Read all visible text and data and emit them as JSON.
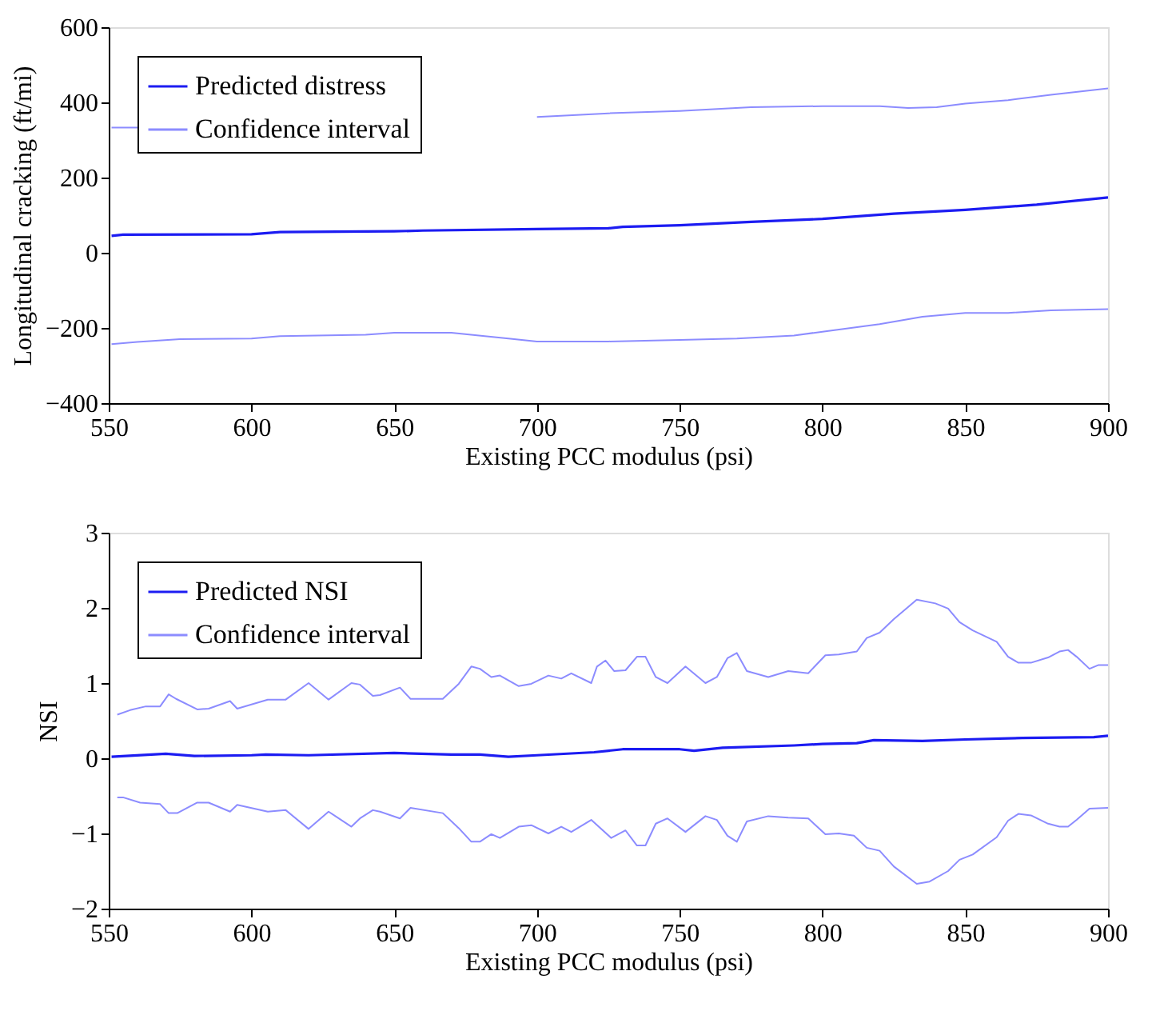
{
  "chart_data": [
    {
      "type": "line",
      "xlabel": "Existing PCC modulus (psi)",
      "ylabel": "Longitudinal cracking (ft/mi)",
      "xlim": [
        550,
        900
      ],
      "ylim": [
        -400,
        600
      ],
      "xticks": [
        550,
        600,
        650,
        700,
        750,
        800,
        850,
        900
      ],
      "yticks": [
        -400,
        -200,
        0,
        200,
        400,
        600
      ],
      "grid": false,
      "legend": "top left",
      "series": [
        {
          "name": "Predicted distress",
          "color": "#1c1cf2",
          "x": [
            551,
            555,
            600,
            610,
            650,
            660,
            700,
            725,
            730,
            750,
            775,
            800,
            825,
            850,
            875,
            900
          ],
          "values": [
            45,
            48,
            49,
            55,
            57,
            59,
            63,
            65,
            69,
            73,
            82,
            90,
            104,
            114,
            128,
            147
          ]
        },
        {
          "name": "Confidence interval",
          "color": "#8c8cff",
          "x": [
            551,
            572,
            636,
            700,
            725,
            750,
            775,
            800,
            820,
            830,
            840,
            850,
            865,
            880,
            900
          ],
          "values": [
            333,
            333,
            null,
            361,
            371,
            377,
            387,
            390,
            390,
            385,
            387,
            397,
            406,
            420,
            437
          ]
        },
        {
          "color": "#8c8cff",
          "x": [
            551,
            560,
            575,
            600,
            610,
            640,
            650,
            670,
            690,
            700,
            725,
            750,
            770,
            790,
            800,
            820,
            835,
            850,
            865,
            880,
            900
          ],
          "values": [
            -243,
            -237,
            -230,
            -228,
            -222,
            -218,
            -213,
            -213,
            -228,
            -236,
            -236,
            -232,
            -228,
            -220,
            -210,
            -190,
            -170,
            -160,
            -160,
            -153,
            -150
          ]
        }
      ]
    },
    {
      "type": "line",
      "xlabel": "Existing PCC modulus (psi)",
      "ylabel": "NSI",
      "xlim": [
        550,
        900
      ],
      "ylim": [
        -2,
        3
      ],
      "xticks": [
        550,
        600,
        650,
        700,
        750,
        800,
        850,
        900
      ],
      "yticks": [
        -2,
        -1,
        0,
        1,
        2,
        3
      ],
      "grid": false,
      "legend": "top left",
      "series": [
        {
          "name": "Predicted NSI",
          "color": "#1c1cf2",
          "x": [
            551,
            570,
            580,
            600,
            605,
            620,
            650,
            670,
            680,
            690,
            700,
            720,
            730,
            750,
            755,
            765,
            790,
            800,
            812,
            818,
            835,
            850,
            870,
            895,
            900
          ],
          "values": [
            0.02,
            0.06,
            0.03,
            0.04,
            0.05,
            0.04,
            0.07,
            0.05,
            0.05,
            0.02,
            0.04,
            0.08,
            0.12,
            0.12,
            0.1,
            0.14,
            0.17,
            0.19,
            0.2,
            0.24,
            0.23,
            0.25,
            0.27,
            0.28,
            0.3
          ]
        },
        {
          "name": "Confidence interval",
          "color": "#8c8cff",
          "x": [
            553,
            557.5,
            563,
            568,
            571,
            573.6,
            581,
            585,
            592.5,
            595,
            605.7,
            612,
            620,
            627,
            635,
            638,
            642.5,
            645,
            652,
            655.7,
            667,
            672.6,
            677,
            680,
            684,
            687,
            693.6,
            698,
            704,
            708.5,
            712,
            719,
            721,
            724,
            727,
            731,
            735,
            738,
            741.6,
            745.7,
            752,
            759,
            763,
            766.7,
            770,
            773.5,
            781,
            788,
            795,
            801,
            805.7,
            812,
            815.5,
            820,
            825,
            833,
            839.5,
            844,
            848,
            852.6,
            861,
            865,
            868.6,
            873,
            879,
            883,
            886,
            889,
            893.5,
            896.7,
            900
          ],
          "values": [
            0.58,
            0.64,
            0.69,
            0.69,
            0.85,
            0.79,
            0.65,
            0.66,
            0.76,
            0.66,
            0.78,
            0.78,
            1.0,
            0.78,
            1.0,
            0.98,
            0.83,
            0.84,
            0.94,
            0.79,
            0.79,
            0.99,
            1.22,
            1.19,
            1.08,
            1.1,
            0.96,
            0.99,
            1.1,
            1.06,
            1.13,
            1.0,
            1.22,
            1.3,
            1.16,
            1.17,
            1.35,
            1.35,
            1.08,
            1.0,
            1.22,
            1.0,
            1.08,
            1.33,
            1.4,
            1.16,
            1.08,
            1.16,
            1.13,
            1.37,
            1.38,
            1.42,
            1.6,
            1.67,
            1.85,
            2.11,
            2.06,
            1.99,
            1.81,
            1.7,
            1.55,
            1.35,
            1.27,
            1.27,
            1.34,
            1.42,
            1.44,
            1.35,
            1.19,
            1.24,
            1.24
          ]
        },
        {
          "color": "#8c8cff",
          "x": [
            553,
            555,
            561,
            568,
            571,
            574,
            581,
            585,
            592.5,
            595,
            605.7,
            612,
            620,
            627,
            635,
            638,
            642.5,
            645,
            652,
            655.7,
            667,
            672.6,
            677,
            680,
            684,
            687,
            693.6,
            698,
            704,
            708.5,
            712,
            719,
            726,
            731,
            735,
            738,
            741.6,
            745.7,
            752,
            759,
            763,
            766.7,
            770,
            773.5,
            781,
            788,
            795,
            801,
            805.7,
            811,
            815.5,
            820,
            825,
            833,
            837.5,
            844,
            848,
            852.6,
            861,
            865,
            868.6,
            873,
            879,
            883,
            886,
            889,
            893.5,
            900
          ],
          "values": [
            -0.52,
            -0.52,
            -0.59,
            -0.61,
            -0.73,
            -0.73,
            -0.59,
            -0.59,
            -0.71,
            -0.62,
            -0.71,
            -0.69,
            -0.94,
            -0.71,
            -0.91,
            -0.8,
            -0.69,
            -0.71,
            -0.8,
            -0.66,
            -0.73,
            -0.93,
            -1.11,
            -1.11,
            -1.01,
            -1.06,
            -0.91,
            -0.89,
            -1.0,
            -0.91,
            -0.98,
            -0.82,
            -1.06,
            -0.96,
            -1.16,
            -1.16,
            -0.87,
            -0.8,
            -0.98,
            -0.77,
            -0.82,
            -1.03,
            -1.11,
            -0.84,
            -0.77,
            -0.79,
            -0.8,
            -1.01,
            -1.0,
            -1.03,
            -1.19,
            -1.23,
            -1.44,
            -1.67,
            -1.64,
            -1.5,
            -1.35,
            -1.28,
            -1.05,
            -0.83,
            -0.74,
            -0.76,
            -0.87,
            -0.91,
            -0.91,
            -0.82,
            -0.67,
            -0.66
          ]
        }
      ]
    }
  ]
}
